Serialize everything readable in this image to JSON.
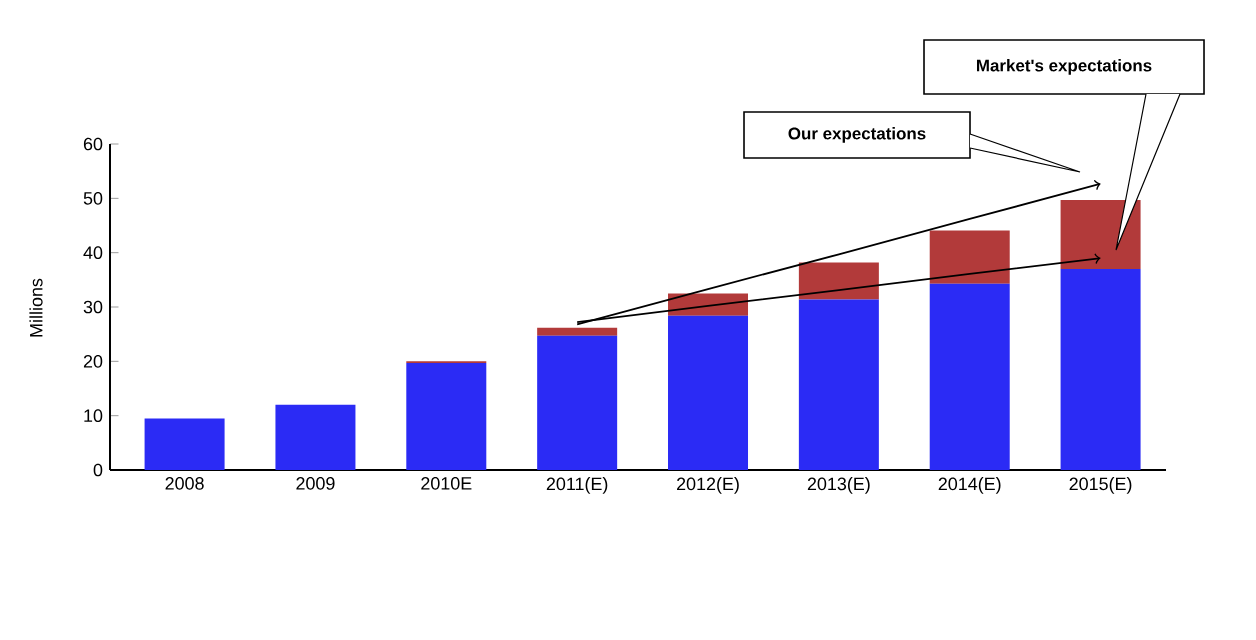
{
  "chart_data": {
    "type": "bar",
    "stacked": true,
    "ylabel": "Millions",
    "categories": [
      "2008",
      "2009",
      "2010E",
      "2011(E)",
      "2012(E)",
      "2013(E)",
      "2014(E)",
      "2015(E)"
    ],
    "series": [
      {
        "color": "#2b2bf5",
        "values": [
          9.5,
          12,
          19.7,
          24.7,
          28.4,
          31.4,
          34.3,
          37
        ]
      },
      {
        "color": "#b23a3a",
        "values": [
          0,
          0,
          0.3,
          1.5,
          4.1,
          6.8,
          9.8,
          12.7
        ]
      },
      {
        "type": "line",
        "color": "#000000",
        "values": [
          null,
          null,
          null,
          26.8,
          33.3,
          39.7,
          46.2,
          52.7
        ]
      },
      {
        "type": "line",
        "color": "#000000",
        "values": [
          null,
          null,
          null,
          27.2,
          30.2,
          33.1,
          36.1,
          39.0
        ]
      }
    ],
    "ylim": [
      0,
      60
    ],
    "yticks": [
      0,
      10,
      20,
      30,
      40,
      50,
      60
    ],
    "annotations": [
      "Our expectations",
      "Market's expectations"
    ]
  }
}
